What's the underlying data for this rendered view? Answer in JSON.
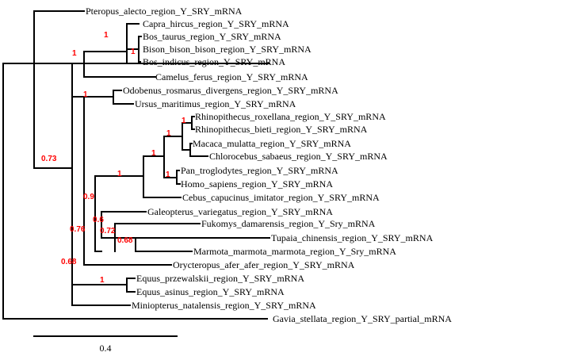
{
  "tree": {
    "taxa": [
      {
        "id": "pteropus",
        "label": "Pteropus_alecto_region_Y_SRY_mRNA"
      },
      {
        "id": "capra",
        "label": "Capra_hircus_region_Y_SRY_mRNA"
      },
      {
        "id": "bos-taurus",
        "label": "Bos_taurus_region_Y_SRY_mRNA"
      },
      {
        "id": "bison",
        "label": "Bison_bison_bison_region_Y_SRY_mRNA"
      },
      {
        "id": "bos-indicus",
        "label": "Bos_indicus_region_Y_SRY_mRNA"
      },
      {
        "id": "camelus",
        "label": "Camelus_ferus_region_Y_SRY_mRNA"
      },
      {
        "id": "odobenus",
        "label": "Odobenus_rosmarus_divergens_region_Y_SRY_mRNA"
      },
      {
        "id": "ursus",
        "label": "Ursus_maritimus_region_Y_SRY_mRNA"
      },
      {
        "id": "rhino-rox",
        "label": "Rhinopithecus_roxellana_region_Y_SRY_mRNA"
      },
      {
        "id": "rhino-bieti",
        "label": "Rhinopithecus_bieti_region_Y_SRY_mRNA"
      },
      {
        "id": "macaca",
        "label": "Macaca_mulatta_region_Y_SRY_mRNA"
      },
      {
        "id": "chlorocebus",
        "label": "Chlorocebus_sabaeus_region_Y_SRY_mRNA"
      },
      {
        "id": "pan",
        "label": "Pan_troglodytes_region_Y_SRY_mRNA"
      },
      {
        "id": "homo",
        "label": "Homo_sapiens_region_Y_SRY_mRNA"
      },
      {
        "id": "cebus",
        "label": "Cebus_capucinus_imitator_region_Y_SRY_mRNA"
      },
      {
        "id": "galeopterus",
        "label": "Galeopterus_variegatus_region_Y_SRY_mRNA"
      },
      {
        "id": "fukomys",
        "label": "Fukomys_damarensis_region_Y_Sry_mRNA"
      },
      {
        "id": "tupaia",
        "label": "Tupaia_chinensis_region_Y_SRY_mRNA"
      },
      {
        "id": "marmota",
        "label": "Marmota_marmota_marmota_region_Y_Sry_mRNA"
      },
      {
        "id": "orycteropus",
        "label": "Orycteropus_afer_afer_region_Y_SRY_mRNA"
      },
      {
        "id": "equus-prz",
        "label": "Equus_przewalskii_region_Y_SRY_mRNA"
      },
      {
        "id": "equus-asinus",
        "label": "Equus_asinus_region_Y_SRY_mRNA"
      },
      {
        "id": "miniopterus",
        "label": "Miniopterus_natalensis_region_Y_SRY_mRNA"
      },
      {
        "id": "gavia",
        "label": "Gavia_stellata_region_Y_SRY_partial_mRNA"
      }
    ],
    "support_values": [
      {
        "id": "bovid-capra",
        "value": "1"
      },
      {
        "id": "bison-indicus",
        "value": "1"
      },
      {
        "id": "ruminant-camel",
        "value": "1"
      },
      {
        "id": "main-clade",
        "value": "0.73"
      },
      {
        "id": "carnivores",
        "value": "1"
      },
      {
        "id": "rhinopithecus",
        "value": "1"
      },
      {
        "id": "old-world-monkeys",
        "value": "1"
      },
      {
        "id": "catarrhines",
        "value": "1"
      },
      {
        "id": "hominids",
        "value": "1"
      },
      {
        "id": "primates",
        "value": "1"
      },
      {
        "id": "euarchontoglires",
        "value": "0.9"
      },
      {
        "id": "glires-tupaia",
        "value": "0.6"
      },
      {
        "id": "fukomys-marmota",
        "value": "0.72"
      },
      {
        "id": "tupaia-marmota",
        "value": "0.68"
      },
      {
        "id": "afro-euarch",
        "value": "0.76"
      },
      {
        "id": "laurasia-rest",
        "value": "0.68"
      },
      {
        "id": "equus",
        "value": "1"
      }
    ],
    "scale_bar": {
      "label": "0.4"
    }
  }
}
